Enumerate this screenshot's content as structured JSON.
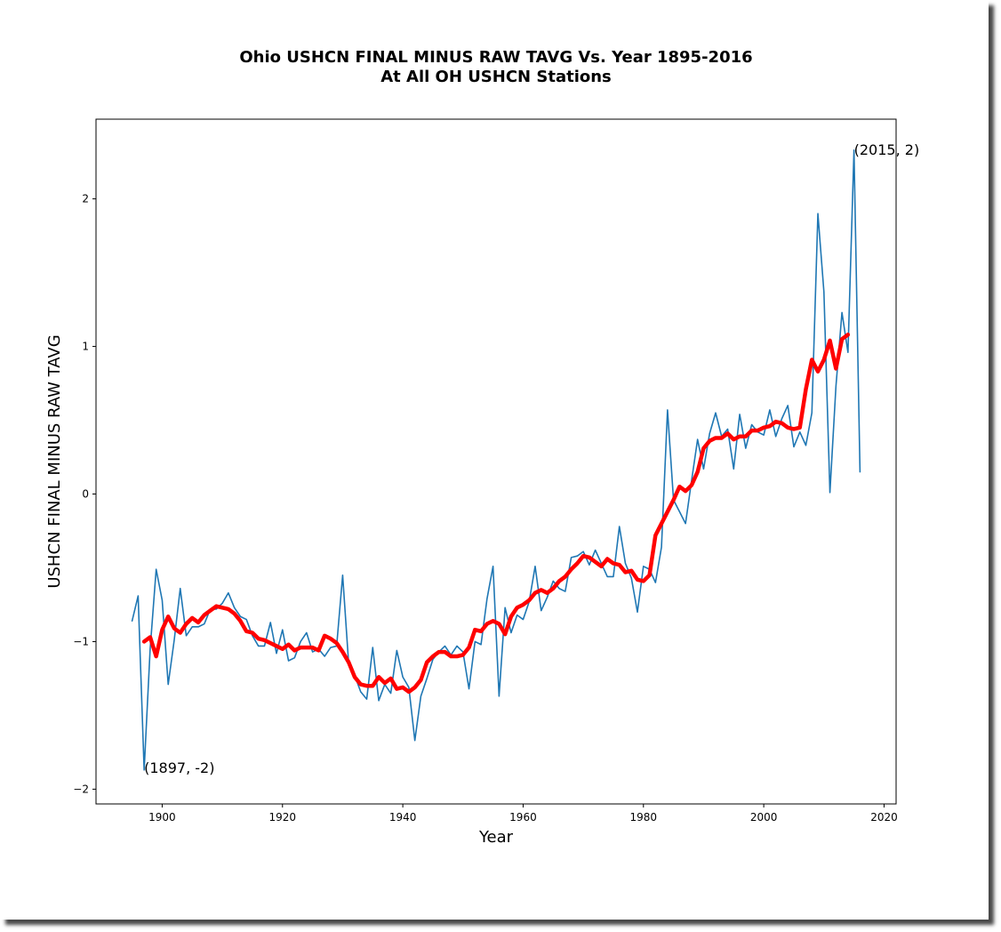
{
  "chart_data": {
    "type": "line",
    "title_line1": "Ohio USHCN FINAL MINUS RAW TAVG Vs. Year 1895-2016",
    "title_line2": "At All OH USHCN Stations",
    "xlabel": "Year",
    "ylabel": "USHCN FINAL MINUS RAW TAVG",
    "xlim": [
      1889,
      2022
    ],
    "ylim": [
      -2.1,
      2.54
    ],
    "xticks": [
      1900,
      1920,
      1940,
      1960,
      1980,
      2000,
      2020
    ],
    "xtick_labels": [
      "1900",
      "1920",
      "1940",
      "1960",
      "1980",
      "2000",
      "2020"
    ],
    "yticks": [
      2,
      1,
      0,
      -1,
      -2
    ],
    "ytick_labels": [
      "2",
      "1",
      "0",
      "−1",
      "−2"
    ],
    "grid": false,
    "colors": {
      "annual": "#1f77b4",
      "smoothed": "#ff0000"
    },
    "annotations": [
      {
        "text": "(1897, -2)",
        "x": 1897,
        "y": -1.86
      },
      {
        "text": "(2015, 2)",
        "x": 2015,
        "y": 2.33
      }
    ],
    "series": [
      {
        "style": "thin",
        "x": [
          1895,
          1896,
          1897,
          1898,
          1899,
          1900,
          1901,
          1902,
          1903,
          1904,
          1905,
          1906,
          1907,
          1908,
          1909,
          1910,
          1911,
          1912,
          1913,
          1914,
          1915,
          1916,
          1917,
          1918,
          1919,
          1920,
          1921,
          1922,
          1923,
          1924,
          1925,
          1926,
          1927,
          1928,
          1929,
          1930,
          1931,
          1932,
          1933,
          1934,
          1935,
          1936,
          1937,
          1938,
          1939,
          1940,
          1941,
          1942,
          1943,
          1944,
          1945,
          1946,
          1947,
          1948,
          1949,
          1950,
          1951,
          1952,
          1953,
          1954,
          1955,
          1956,
          1957,
          1958,
          1959,
          1960,
          1961,
          1962,
          1963,
          1964,
          1965,
          1966,
          1967,
          1968,
          1969,
          1970,
          1971,
          1972,
          1973,
          1974,
          1975,
          1976,
          1977,
          1978,
          1979,
          1980,
          1981,
          1982,
          1983,
          1984,
          1985,
          1986,
          1987,
          1988,
          1989,
          1990,
          1991,
          1992,
          1993,
          1994,
          1995,
          1996,
          1997,
          1998,
          1999,
          2000,
          2001,
          2002,
          2003,
          2004,
          2005,
          2006,
          2007,
          2008,
          2009,
          2010,
          2011,
          2012,
          2013,
          2014,
          2015,
          2016
        ],
        "y": [
          -0.86,
          -0.69,
          -1.87,
          -1.05,
          -0.51,
          -0.72,
          -1.29,
          -0.99,
          -0.64,
          -0.96,
          -0.9,
          -0.9,
          -0.88,
          -0.78,
          -0.78,
          -0.74,
          -0.67,
          -0.77,
          -0.83,
          -0.85,
          -0.96,
          -1.03,
          -1.03,
          -0.87,
          -1.08,
          -0.92,
          -1.13,
          -1.11,
          -1.0,
          -0.94,
          -1.07,
          -1.05,
          -1.1,
          -1.04,
          -1.03,
          -0.55,
          -1.15,
          -1.23,
          -1.34,
          -1.39,
          -1.04,
          -1.4,
          -1.29,
          -1.35,
          -1.06,
          -1.24,
          -1.31,
          -1.67,
          -1.37,
          -1.25,
          -1.12,
          -1.07,
          -1.03,
          -1.09,
          -1.03,
          -1.07,
          -1.32,
          -1.0,
          -1.02,
          -0.71,
          -0.49,
          -1.37,
          -0.77,
          -0.94,
          -0.82,
          -0.85,
          -0.73,
          -0.49,
          -0.79,
          -0.7,
          -0.59,
          -0.64,
          -0.66,
          -0.43,
          -0.42,
          -0.39,
          -0.48,
          -0.38,
          -0.47,
          -0.56,
          -0.56,
          -0.22,
          -0.47,
          -0.57,
          -0.8,
          -0.49,
          -0.51,
          -0.6,
          -0.36,
          0.57,
          -0.04,
          -0.12,
          -0.2,
          0.09,
          0.37,
          0.17,
          0.41,
          0.55,
          0.39,
          0.44,
          0.17,
          0.54,
          0.31,
          0.47,
          0.42,
          0.4,
          0.57,
          0.39,
          0.51,
          0.6,
          0.32,
          0.42,
          0.33,
          0.55,
          1.9,
          1.37,
          0.01,
          0.73,
          1.23,
          0.96,
          2.33,
          0.15
        ]
      },
      {
        "style": "thick",
        "x": [
          1897,
          1898,
          1899,
          1900,
          1901,
          1902,
          1903,
          1904,
          1905,
          1906,
          1907,
          1908,
          1909,
          1910,
          1911,
          1912,
          1913,
          1914,
          1915,
          1916,
          1917,
          1918,
          1919,
          1920,
          1921,
          1922,
          1923,
          1924,
          1925,
          1926,
          1927,
          1928,
          1929,
          1930,
          1931,
          1932,
          1933,
          1934,
          1935,
          1936,
          1937,
          1938,
          1939,
          1940,
          1941,
          1942,
          1943,
          1944,
          1945,
          1946,
          1947,
          1948,
          1949,
          1950,
          1951,
          1952,
          1953,
          1954,
          1955,
          1956,
          1957,
          1958,
          1959,
          1960,
          1961,
          1962,
          1963,
          1964,
          1965,
          1966,
          1967,
          1968,
          1969,
          1970,
          1971,
          1972,
          1973,
          1974,
          1975,
          1976,
          1977,
          1978,
          1979,
          1980,
          1981,
          1982,
          1983,
          1984,
          1985,
          1986,
          1987,
          1988,
          1989,
          1990,
          1991,
          1992,
          1993,
          1994,
          1995,
          1996,
          1997,
          1998,
          1999,
          2000,
          2001,
          2002,
          2003,
          2004,
          2005,
          2006,
          2007,
          2008,
          2009,
          2010,
          2011,
          2012,
          2013,
          2014,
          2015
        ],
        "y": [
          -1.0,
          -0.97,
          -1.1,
          -0.92,
          -0.83,
          -0.91,
          -0.94,
          -0.88,
          -0.84,
          -0.87,
          -0.82,
          -0.79,
          -0.76,
          -0.77,
          -0.78,
          -0.81,
          -0.86,
          -0.93,
          -0.94,
          -0.98,
          -0.99,
          -1.01,
          -1.03,
          -1.05,
          -1.02,
          -1.06,
          -1.04,
          -1.04,
          -1.04,
          -1.06,
          -0.96,
          -0.98,
          -1.01,
          -1.07,
          -1.14,
          -1.24,
          -1.29,
          -1.3,
          -1.3,
          -1.24,
          -1.28,
          -1.25,
          -1.32,
          -1.31,
          -1.34,
          -1.31,
          -1.26,
          -1.14,
          -1.1,
          -1.07,
          -1.07,
          -1.1,
          -1.1,
          -1.09,
          -1.04,
          -0.92,
          -0.93,
          -0.88,
          -0.86,
          -0.88,
          -0.95,
          -0.83,
          -0.77,
          -0.75,
          -0.72,
          -0.67,
          -0.65,
          -0.67,
          -0.64,
          -0.59,
          -0.56,
          -0.51,
          -0.47,
          -0.42,
          -0.43,
          -0.46,
          -0.49,
          -0.44,
          -0.47,
          -0.48,
          -0.53,
          -0.52,
          -0.58,
          -0.59,
          -0.55,
          -0.28,
          -0.2,
          -0.12,
          -0.04,
          0.05,
          0.02,
          0.06,
          0.15,
          0.31,
          0.36,
          0.38,
          0.38,
          0.41,
          0.37,
          0.39,
          0.39,
          0.43,
          0.43,
          0.45,
          0.46,
          0.49,
          0.48,
          0.45,
          0.44,
          0.45,
          0.71,
          0.91,
          0.83,
          0.91,
          1.04,
          0.85,
          1.05,
          1.08,
          null
        ]
      }
    ]
  }
}
